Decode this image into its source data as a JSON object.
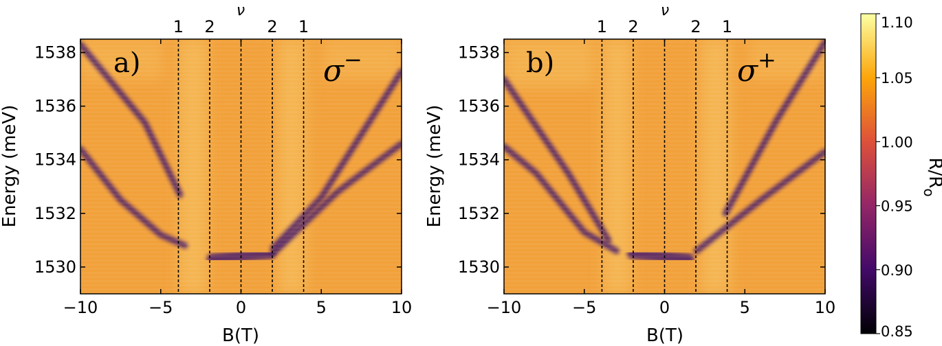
{
  "chart_data": [
    {
      "type": "heatmap",
      "panel_label": "a)",
      "polarization": {
        "symbol": "σ",
        "sign": "−"
      },
      "xlabel": "B(T)",
      "ylabel": "Energy (meV)",
      "xlim": [
        -10,
        10
      ],
      "ylim": [
        1529,
        1538.5
      ],
      "xticks": [
        -10,
        -5,
        0,
        5,
        10
      ],
      "xtick_labels": [
        "−10",
        "−5",
        "0",
        "5",
        "10"
      ],
      "yticks": [
        1530,
        1532,
        1534,
        1536,
        1538
      ],
      "ytick_labels": [
        "1530",
        "1532",
        "1534",
        "1536",
        "1538"
      ],
      "top_axis_label": "ν",
      "filling_factor_lines": [
        {
          "B": -3.9,
          "label": "1"
        },
        {
          "B": -1.95,
          "label": "2"
        },
        {
          "B": 0,
          "label": ""
        },
        {
          "B": 1.95,
          "label": "2"
        },
        {
          "B": 3.9,
          "label": "1"
        }
      ],
      "features": [
        {
          "name": "central-exciton",
          "B": [
            -1.8,
            1.8
          ],
          "E": [
            1530.3,
            1530.5
          ]
        },
        {
          "name": "left-steep-branch",
          "B": [
            -10,
            -6,
            -3.8
          ],
          "E": [
            1538.3,
            1535.4,
            1532.7
          ]
        },
        {
          "name": "left-lower-branch",
          "B": [
            -10,
            -7.5,
            -5,
            -3.5
          ],
          "E": [
            1534.4,
            1532.5,
            1531.2,
            1530.8
          ]
        },
        {
          "name": "right-upper-branch",
          "B": [
            2,
            5,
            10
          ],
          "E": [
            1530.7,
            1532.6,
            1537.3
          ]
        },
        {
          "name": "right-lower-branch",
          "B": [
            2,
            6,
            10
          ],
          "E": [
            1530.5,
            1532.8,
            1534.6
          ]
        }
      ]
    },
    {
      "type": "heatmap",
      "panel_label": "b)",
      "polarization": {
        "symbol": "σ",
        "sign": "+"
      },
      "xlabel": "B(T)",
      "ylabel": "Energy (meV)",
      "xlim": [
        -10,
        10
      ],
      "ylim": [
        1529,
        1538.5
      ],
      "xticks": [
        -10,
        -5,
        0,
        5,
        10
      ],
      "xtick_labels": [
        "−10",
        "−5",
        "0",
        "5",
        "10"
      ],
      "yticks": [
        1530,
        1532,
        1534,
        1536,
        1538
      ],
      "ytick_labels": [
        "1530",
        "1532",
        "1534",
        "1536",
        "1538"
      ],
      "top_axis_label": "ν",
      "filling_factor_lines": [
        {
          "B": -3.9,
          "label": "1"
        },
        {
          "B": -1.95,
          "label": "2"
        },
        {
          "B": 0,
          "label": ""
        },
        {
          "B": 1.95,
          "label": "2"
        },
        {
          "B": 3.9,
          "label": "1"
        }
      ],
      "features": [
        {
          "name": "central-exciton",
          "B": [
            -2,
            1.5
          ],
          "E": [
            1530.5,
            1530.3
          ]
        },
        {
          "name": "left-upper-branch",
          "B": [
            -10,
            -6,
            -3.5
          ],
          "E": [
            1537.0,
            1533.5,
            1531.0
          ]
        },
        {
          "name": "left-lower-branch",
          "B": [
            -10,
            -8,
            -5,
            -3
          ],
          "E": [
            1534.5,
            1533.5,
            1531.3,
            1530.6
          ]
        },
        {
          "name": "right-steep-branch",
          "B": [
            3.8,
            7,
            10
          ],
          "E": [
            1532.0,
            1535.5,
            1538.4
          ]
        },
        {
          "name": "right-lower-branch",
          "B": [
            2,
            6,
            10
          ],
          "E": [
            1530.6,
            1532.5,
            1534.3
          ]
        }
      ]
    }
  ],
  "colorbar": {
    "label": "R/R",
    "label_subscript": "o",
    "range": [
      0.85,
      1.1
    ],
    "ticks": [
      0.85,
      0.9,
      0.95,
      1.0,
      1.05,
      1.1
    ],
    "tick_labels": [
      "0.85",
      "0.90",
      "0.95",
      "1.00",
      "1.05",
      "1.10"
    ],
    "colormap": "inferno",
    "stops": [
      "#000004",
      "#420a68",
      "#932667",
      "#dd513a",
      "#fca50a",
      "#fcffa4"
    ]
  },
  "colors": {
    "background": "#f2a13a",
    "branch": "#4a1a6a",
    "light_band": "#f8c766"
  }
}
